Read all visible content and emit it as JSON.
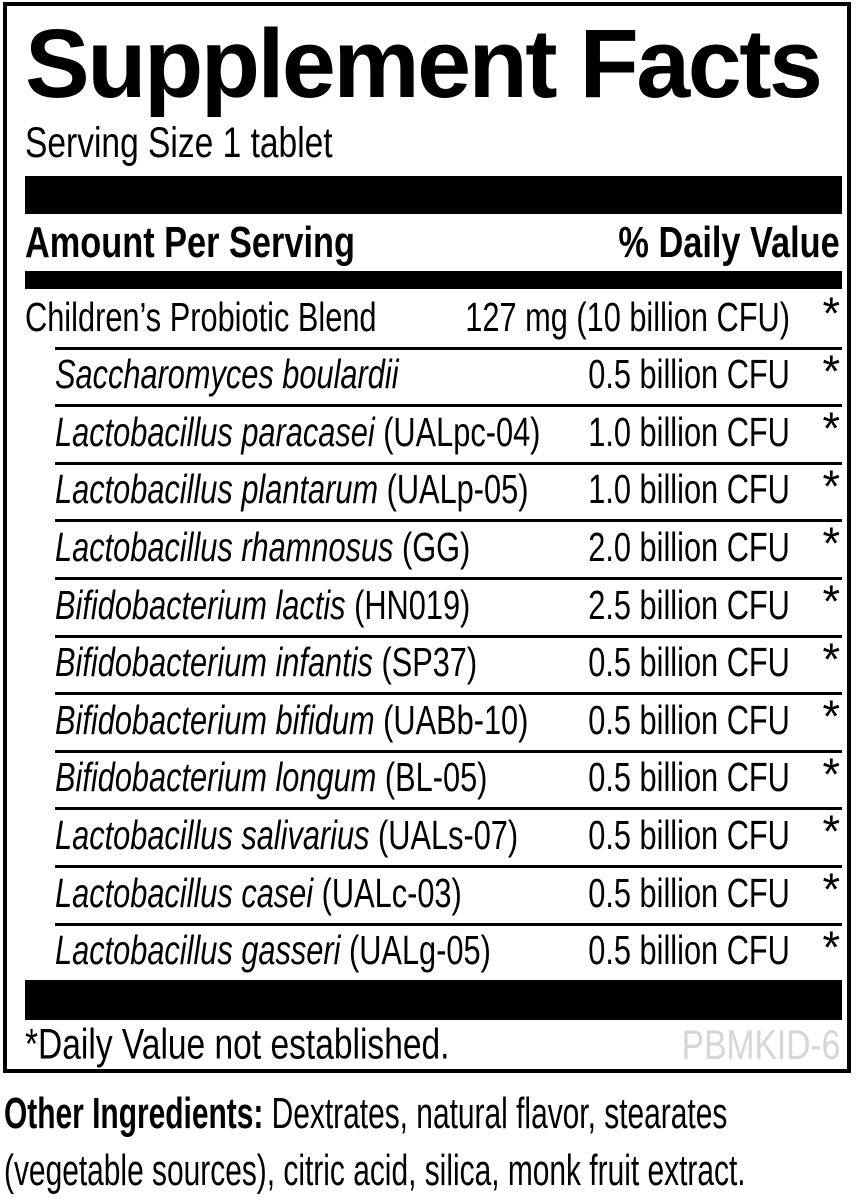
{
  "label": {
    "title": "Supplement Facts",
    "serving_size": "Serving Size 1 tablet",
    "header": {
      "amount_per_serving": "Amount Per Serving",
      "percent_daily_value": "% Daily Value"
    },
    "rows": [
      {
        "italic": "",
        "plain": "Children’s Probiotic Blend",
        "amount": "127 mg (10 billion CFU)",
        "daily_value": "*"
      },
      {
        "italic": "Saccharomyces boulardii",
        "plain": "",
        "amount": "0.5 billion CFU",
        "daily_value": "*"
      },
      {
        "italic": "Lactobacillus paracasei",
        "plain": " (UALpc-04)",
        "amount": "1.0 billion CFU",
        "daily_value": "*"
      },
      {
        "italic": "Lactobacillus plantarum",
        "plain": " (UALp-05)",
        "amount": "1.0 billion CFU",
        "daily_value": "*"
      },
      {
        "italic": "Lactobacillus rhamnosus",
        "plain": " (GG)",
        "amount": "2.0 billion CFU",
        "daily_value": "*"
      },
      {
        "italic": "Bifidobacterium lactis",
        "plain": " (HN019)",
        "amount": "2.5 billion CFU",
        "daily_value": "*"
      },
      {
        "italic": "Bifidobacterium infantis",
        "plain": " (SP37)",
        "amount": "0.5 billion CFU",
        "daily_value": "*"
      },
      {
        "italic": "Bifidobacterium bifidum",
        "plain": " (UABb-10)",
        "amount": "0.5 billion CFU",
        "daily_value": "*"
      },
      {
        "italic": "Bifidobacterium longum",
        "plain": " (BL-05)",
        "amount": "0.5 billion CFU",
        "daily_value": "*"
      },
      {
        "italic": "Lactobacillus salivarius",
        "plain": " (UALs-07)",
        "amount": "0.5 billion CFU",
        "daily_value": "*"
      },
      {
        "italic": "Lactobacillus casei",
        "plain": " (UALc-03)",
        "amount": "0.5 billion CFU",
        "daily_value": "*"
      },
      {
        "italic": "Lactobacillus gasseri",
        "plain": " (UALg-05)",
        "amount": "0.5 billion CFU",
        "daily_value": "*"
      }
    ],
    "footnote": "*Daily Value not established.",
    "product_code": "PBMKID-6"
  },
  "other_ingredients": {
    "label": "Other Ingredients:",
    "line1_rest": " Dextrates, natural flavor, stearates",
    "line2": "(vegetable sources), citric acid, silica, monk fruit extract."
  },
  "colors": {
    "text": "#000000",
    "background": "#ffffff",
    "bar": "#000000",
    "product_code_gray": "#d6d6d6"
  }
}
